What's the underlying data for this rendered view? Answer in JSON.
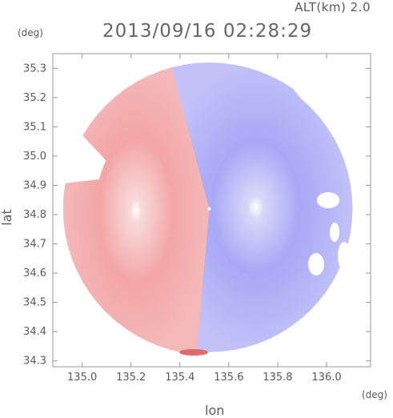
{
  "header": {
    "altitude": "ALT(km) 2.0",
    "timestamp": "2013/09/16 02:28:29"
  },
  "chart_data": {
    "type": "heatmap",
    "title": "2013/09/16 02:28:29",
    "subtitle": "ALT(km) 2.0",
    "xlabel": "lon",
    "ylabel": "lat",
    "x_unit": "(deg)",
    "y_unit": "(deg)",
    "xlim": [
      134.88,
      136.18
    ],
    "ylim": [
      34.28,
      35.35
    ],
    "xticks": [
      "135.0",
      "135.2",
      "135.4",
      "135.6",
      "135.8",
      "136.0"
    ],
    "yticks": [
      "34.3",
      "34.4",
      "34.5",
      "34.6",
      "34.7",
      "34.8",
      "34.9",
      "35.0",
      "35.1",
      "35.2",
      "35.3"
    ],
    "radar_center": [
      135.52,
      34.82
    ],
    "radar_range_deg_lat": 0.5,
    "colors": {
      "toward": "#f08a8a",
      "away": "#8c8cf2",
      "neutral": "#ffffff",
      "frame": "#999999"
    },
    "grid": false
  }
}
